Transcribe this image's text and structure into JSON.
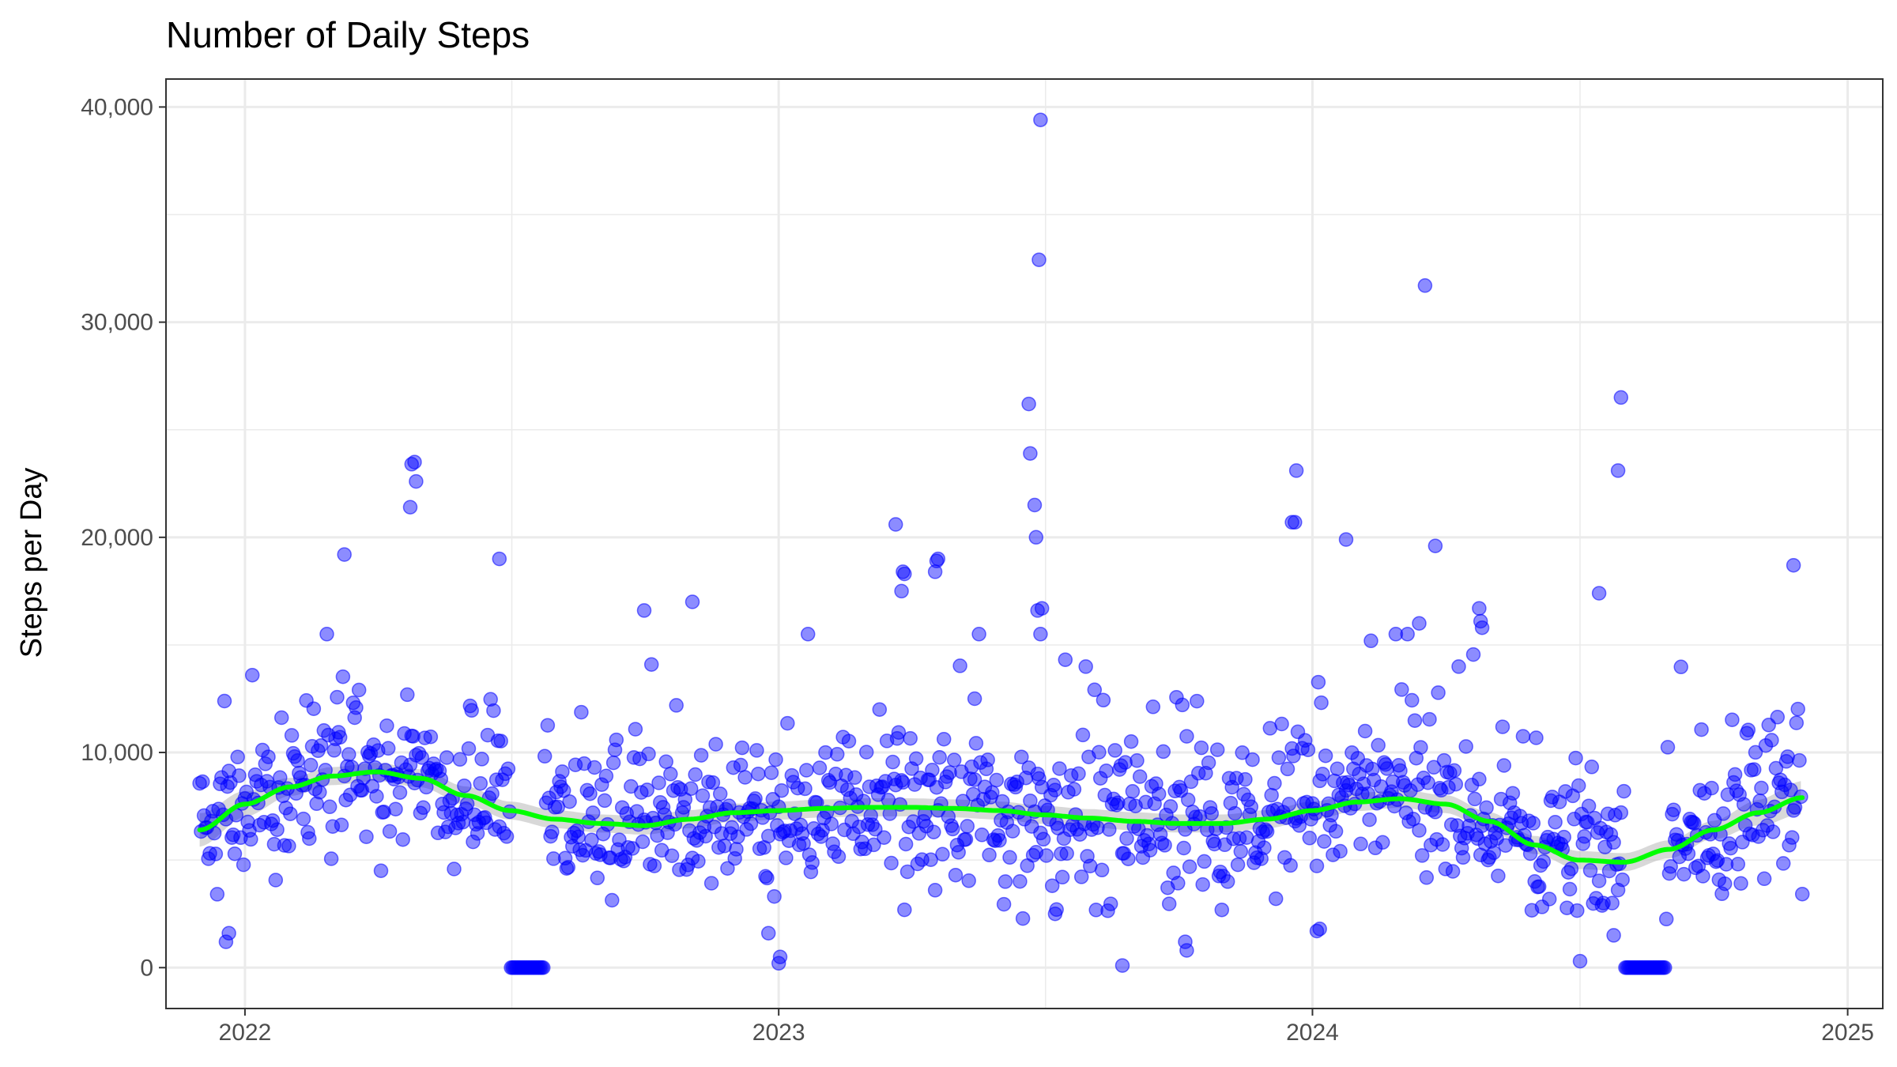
{
  "chart_data": {
    "type": "scatter",
    "title": "Number of Daily Steps",
    "xlabel": "",
    "ylabel": "Steps per Day",
    "x_ticks": [
      "2022",
      "2023",
      "2024",
      "2025"
    ],
    "x_tick_dates": [
      "2022-01-01",
      "2023-01-01",
      "2024-01-01",
      "2025-01-01"
    ],
    "xlim": [
      "2021-11-08",
      "2025-01-25"
    ],
    "y_ticks": [
      "0",
      "10,000",
      "20,000",
      "30,000",
      "40,000"
    ],
    "y_tick_values": [
      0,
      10000,
      20000,
      30000,
      40000
    ],
    "ylim": [
      -1900,
      41300
    ],
    "grid": true,
    "colors": {
      "points": "#0000ff",
      "smooth": "#00ff00",
      "band": "#bebebe",
      "grid": "#ebebeb",
      "axis": "#333333"
    },
    "seed": 20241207,
    "series": [
      {
        "kind": "points",
        "date_range": [
          "2021-12-01",
          "2024-12-01"
        ],
        "trend_samples": [
          [
            "2021-12-01",
            6400
          ],
          [
            "2022-01-01",
            7600
          ],
          [
            "2022-02-01",
            8400
          ],
          [
            "2022-03-01",
            8900
          ],
          [
            "2022-04-01",
            9100
          ],
          [
            "2022-05-01",
            8800
          ],
          [
            "2022-06-01",
            8000
          ],
          [
            "2022-07-01",
            7300
          ],
          [
            "2022-08-01",
            6900
          ],
          [
            "2022-09-01",
            6700
          ],
          [
            "2022-10-01",
            6600
          ],
          [
            "2022-11-01",
            6900
          ],
          [
            "2022-12-01",
            7200
          ],
          [
            "2023-01-01",
            7300
          ],
          [
            "2023-02-01",
            7400
          ],
          [
            "2023-03-01",
            7450
          ],
          [
            "2023-04-01",
            7450
          ],
          [
            "2023-05-01",
            7400
          ],
          [
            "2023-06-01",
            7300
          ],
          [
            "2023-07-01",
            7100
          ],
          [
            "2023-08-01",
            6950
          ],
          [
            "2023-09-01",
            6800
          ],
          [
            "2023-10-01",
            6700
          ],
          [
            "2023-11-01",
            6700
          ],
          [
            "2023-12-01",
            6900
          ],
          [
            "2024-01-01",
            7300
          ],
          [
            "2024-02-01",
            7700
          ],
          [
            "2024-03-01",
            7850
          ],
          [
            "2024-04-01",
            7600
          ],
          [
            "2024-05-01",
            6800
          ],
          [
            "2024-06-01",
            5700
          ],
          [
            "2024-07-01",
            5000
          ],
          [
            "2024-08-01",
            4900
          ],
          [
            "2024-09-01",
            5500
          ],
          [
            "2024-10-01",
            6400
          ],
          [
            "2024-11-01",
            7200
          ],
          [
            "2024-12-01",
            7900
          ]
        ],
        "zero_runs": [
          [
            "2022-07-02",
            "2022-07-24"
          ],
          [
            "2024-08-02",
            "2024-08-29"
          ]
        ],
        "outliers": [
          [
            "2022-04-25",
            23400
          ],
          [
            "2022-04-27",
            23500
          ],
          [
            "2022-04-28",
            22600
          ],
          [
            "2022-04-24",
            21400
          ],
          [
            "2022-03-10",
            19200
          ],
          [
            "2022-06-24",
            19000
          ],
          [
            "2022-12-25",
            1600
          ],
          [
            "2023-01-01",
            200
          ],
          [
            "2023-01-02",
            500
          ],
          [
            "2023-03-22",
            20600
          ],
          [
            "2023-03-27",
            18400
          ],
          [
            "2023-03-28",
            18300
          ],
          [
            "2023-03-26",
            17500
          ],
          [
            "2023-04-19",
            18900
          ],
          [
            "2023-04-20",
            19000
          ],
          [
            "2023-04-18",
            18400
          ],
          [
            "2023-06-29",
            39400
          ],
          [
            "2023-06-28",
            32900
          ],
          [
            "2023-06-21",
            26200
          ],
          [
            "2023-06-22",
            23900
          ],
          [
            "2023-06-25",
            21500
          ],
          [
            "2023-06-26",
            20000
          ],
          [
            "2023-06-27",
            16600
          ],
          [
            "2023-06-30",
            16700
          ],
          [
            "2023-06-29",
            15500
          ],
          [
            "2023-07-09",
            2500
          ],
          [
            "2023-07-10",
            2700
          ],
          [
            "2023-08-24",
            100
          ],
          [
            "2023-10-06",
            1200
          ],
          [
            "2023-10-07",
            800
          ],
          [
            "2023-12-21",
            23100
          ],
          [
            "2023-12-18",
            20700
          ],
          [
            "2023-12-20",
            20700
          ],
          [
            "2024-01-24",
            19900
          ],
          [
            "2024-01-04",
            1700
          ],
          [
            "2024-01-06",
            1800
          ],
          [
            "2024-03-18",
            31700
          ],
          [
            "2024-03-25",
            19600
          ],
          [
            "2024-03-14",
            16000
          ],
          [
            "2024-04-24",
            16700
          ],
          [
            "2024-04-25",
            16100
          ],
          [
            "2024-04-26",
            15800
          ],
          [
            "2024-07-15",
            17400
          ],
          [
            "2024-07-30",
            26500
          ],
          [
            "2024-07-28",
            23100
          ],
          [
            "2024-07-25",
            1500
          ],
          [
            "2024-11-25",
            18700
          ],
          [
            "2022-10-01",
            16600
          ],
          [
            "2022-11-03",
            17000
          ],
          [
            "2023-05-15",
            12500
          ],
          [
            "2021-12-19",
            1200
          ],
          [
            "2021-12-21",
            1600
          ]
        ]
      },
      {
        "kind": "smooth",
        "label": ""
      }
    ]
  }
}
